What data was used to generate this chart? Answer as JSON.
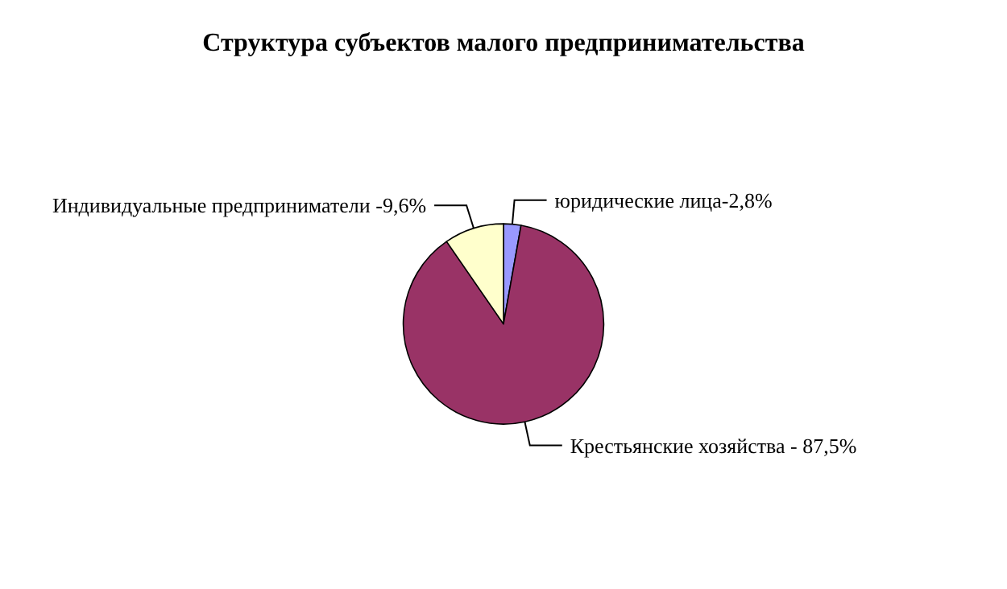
{
  "chart_data": {
    "type": "pie",
    "title": "Структура субъектов малого предпринимательства",
    "categories": [
      "юридические лица-2,8%",
      "Крестьянские хозяйства - 87,5%",
      "Индивидуальные предприниматели -9,6%"
    ],
    "values": [
      2.8,
      87.5,
      9.6
    ],
    "colors": [
      "#9999ff",
      "#993366",
      "#ffffcc"
    ],
    "legend": false
  }
}
